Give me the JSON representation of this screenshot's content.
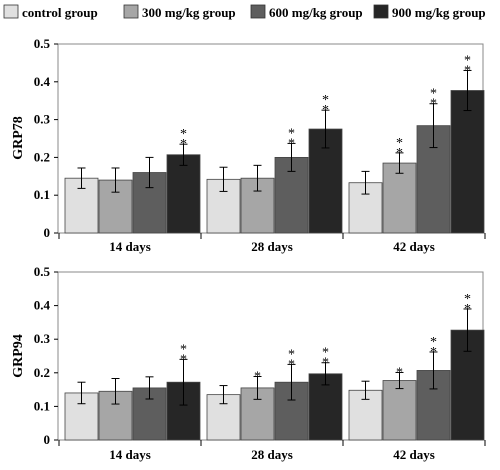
{
  "legend": {
    "entries": [
      {
        "name": "control group",
        "color": "#e0e0e0"
      },
      {
        "name": "300 mg/kg group",
        "color": "#a6a6a6"
      },
      {
        "name": "600 mg/kg group",
        "color": "#5e5e5e"
      },
      {
        "name": "900 mg/kg group",
        "color": "#262626"
      }
    ]
  },
  "chart_data": [
    {
      "type": "bar",
      "ylabel": "GRP78",
      "ylim": [
        0,
        0.5
      ],
      "yticks": [
        "0",
        "0.1",
        "0.2",
        "0.3",
        "0.4",
        "0.5"
      ],
      "categories": [
        "14 days",
        "28 days",
        "42 days"
      ],
      "series": [
        {
          "name": "control group",
          "values": [
            0.145,
            0.142,
            0.133
          ],
          "errors": [
            0.027,
            0.032,
            0.03
          ],
          "sig": [
            "",
            "",
            ""
          ]
        },
        {
          "name": "300 mg/kg group",
          "values": [
            0.14,
            0.145,
            0.185
          ],
          "errors": [
            0.032,
            0.034,
            0.027
          ],
          "sig": [
            "",
            "",
            "**"
          ]
        },
        {
          "name": "600 mg/kg group",
          "values": [
            0.16,
            0.2,
            0.284
          ],
          "errors": [
            0.04,
            0.037,
            0.058
          ],
          "sig": [
            "",
            "**",
            "**"
          ]
        },
        {
          "name": "900 mg/kg group",
          "values": [
            0.207,
            0.275,
            0.377
          ],
          "errors": [
            0.028,
            0.05,
            0.053
          ],
          "sig": [
            "**",
            "**",
            "**"
          ]
        }
      ]
    },
    {
      "type": "bar",
      "ylabel": "GRP94",
      "ylim": [
        0,
        0.5
      ],
      "yticks": [
        "0",
        "0.1",
        "0.2",
        "0.3",
        "0.4",
        "0.5"
      ],
      "categories": [
        "14 days",
        "28 days",
        "42 days"
      ],
      "series": [
        {
          "name": "control group",
          "values": [
            0.14,
            0.135,
            0.148
          ],
          "errors": [
            0.032,
            0.027,
            0.027
          ],
          "sig": [
            "",
            "",
            ""
          ]
        },
        {
          "name": "300 mg/kg group",
          "values": [
            0.145,
            0.155,
            0.177
          ],
          "errors": [
            0.038,
            0.034,
            0.024
          ],
          "sig": [
            "",
            "*",
            "*"
          ]
        },
        {
          "name": "600 mg/kg group",
          "values": [
            0.155,
            0.172,
            0.207
          ],
          "errors": [
            0.033,
            0.053,
            0.055
          ],
          "sig": [
            "",
            "**",
            "**"
          ]
        },
        {
          "name": "900 mg/kg group",
          "values": [
            0.172,
            0.197,
            0.327
          ],
          "errors": [
            0.068,
            0.033,
            0.063
          ],
          "sig": [
            "**",
            "**",
            "**"
          ]
        }
      ]
    }
  ]
}
